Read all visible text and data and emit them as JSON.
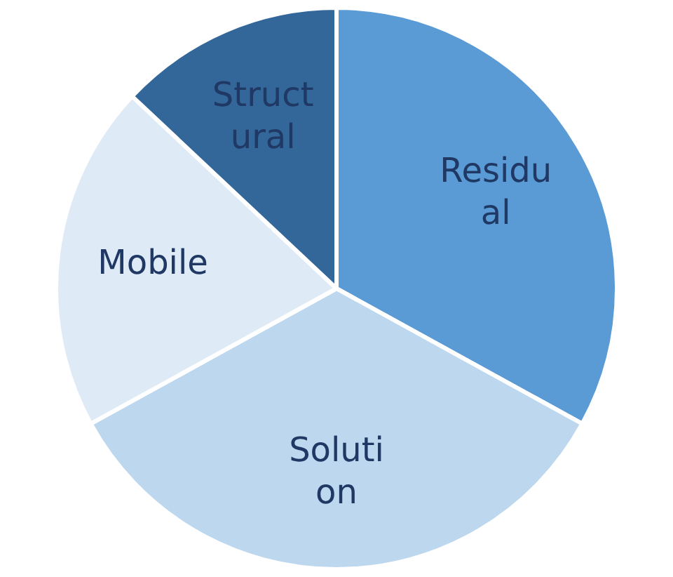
{
  "chart_data": {
    "type": "pie",
    "categories": [
      "Residual",
      "Solution",
      "Mobile",
      "Structural"
    ],
    "values": [
      33,
      34,
      20,
      13
    ],
    "colors": [
      "#5b9bd5",
      "#bdd7ee",
      "#deeaf6",
      "#336699"
    ],
    "legend": false
  }
}
